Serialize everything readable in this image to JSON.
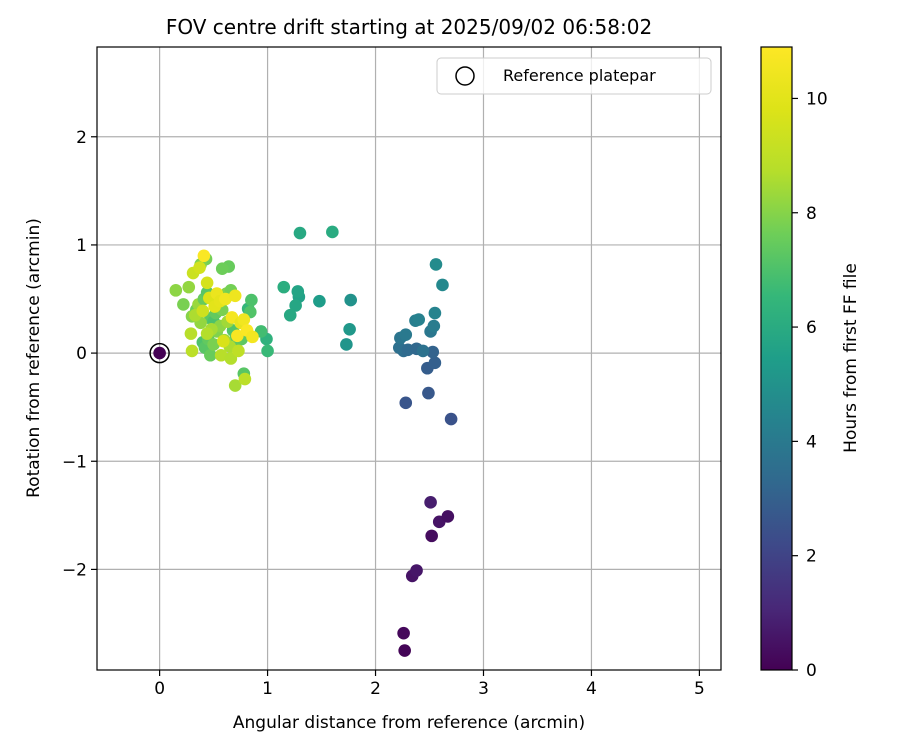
{
  "chart_data": {
    "type": "scatter",
    "title": "FOV centre drift starting at 2025/09/02 06:58:02",
    "xlabel": "Angular distance from reference (arcmin)",
    "ylabel": "Rotation from reference (arcmin)",
    "xlim": [
      -0.58,
      5.2
    ],
    "ylim": [
      -2.93,
      2.83
    ],
    "xticks": [
      0,
      1,
      2,
      3,
      4,
      5
    ],
    "yticks": [
      -2,
      -1,
      0,
      1,
      2
    ],
    "xtick_labels": [
      "0",
      "1",
      "2",
      "3",
      "4",
      "5"
    ],
    "ytick_labels": [
      "−2",
      "−1",
      "0",
      "1",
      "2"
    ],
    "grid": true,
    "legend": {
      "position": "top-right",
      "entries": [
        "Reference platepar"
      ]
    },
    "colorbar": {
      "label": "Hours from first FF file",
      "colormap": "viridis",
      "range": [
        0,
        10.9
      ],
      "ticks": [
        0,
        2,
        4,
        6,
        8,
        10
      ],
      "tick_labels": [
        "0",
        "2",
        "4",
        "6",
        "8",
        "10"
      ]
    },
    "reference_point": {
      "x": 0,
      "y": 0
    },
    "points": [
      {
        "x": 2.27,
        "y": -2.75,
        "h": 0.1
      },
      {
        "x": 2.26,
        "y": -2.59,
        "h": 0.2
      },
      {
        "x": 2.34,
        "y": -2.06,
        "h": 0.5
      },
      {
        "x": 2.38,
        "y": -2.01,
        "h": 0.6
      },
      {
        "x": 2.52,
        "y": -1.69,
        "h": 0.3
      },
      {
        "x": 2.59,
        "y": -1.56,
        "h": 0.5
      },
      {
        "x": 2.67,
        "y": -1.51,
        "h": 0.4
      },
      {
        "x": 2.51,
        "y": -1.38,
        "h": 0.8
      },
      {
        "x": 2.7,
        "y": -0.61,
        "h": 2.5
      },
      {
        "x": 2.28,
        "y": -0.46,
        "h": 2.6
      },
      {
        "x": 2.49,
        "y": -0.37,
        "h": 2.7
      },
      {
        "x": 2.48,
        "y": -0.14,
        "h": 2.9
      },
      {
        "x": 2.55,
        "y": -0.09,
        "h": 3.0
      },
      {
        "x": 2.53,
        "y": 0.01,
        "h": 3.1
      },
      {
        "x": 2.26,
        "y": 0.02,
        "h": 3.5
      },
      {
        "x": 2.22,
        "y": 0.05,
        "h": 3.6
      },
      {
        "x": 2.3,
        "y": 0.03,
        "h": 3.4
      },
      {
        "x": 2.38,
        "y": 0.04,
        "h": 3.3
      },
      {
        "x": 2.44,
        "y": 0.02,
        "h": 3.7
      },
      {
        "x": 2.23,
        "y": 0.14,
        "h": 3.8
      },
      {
        "x": 2.28,
        "y": 0.17,
        "h": 4.0
      },
      {
        "x": 2.51,
        "y": 0.2,
        "h": 3.9
      },
      {
        "x": 2.54,
        "y": 0.25,
        "h": 4.1
      },
      {
        "x": 2.37,
        "y": 0.3,
        "h": 4.2
      },
      {
        "x": 2.4,
        "y": 0.31,
        "h": 4.3
      },
      {
        "x": 2.55,
        "y": 0.37,
        "h": 4.4
      },
      {
        "x": 2.62,
        "y": 0.63,
        "h": 4.6
      },
      {
        "x": 2.56,
        "y": 0.82,
        "h": 4.7
      },
      {
        "x": 1.73,
        "y": 0.08,
        "h": 5.1
      },
      {
        "x": 1.76,
        "y": 0.22,
        "h": 5.2
      },
      {
        "x": 1.77,
        "y": 0.49,
        "h": 5.0
      },
      {
        "x": 1.48,
        "y": 0.48,
        "h": 5.4
      },
      {
        "x": 1.29,
        "y": 0.52,
        "h": 5.6
      },
      {
        "x": 1.28,
        "y": 0.57,
        "h": 5.7
      },
      {
        "x": 1.26,
        "y": 0.44,
        "h": 5.8
      },
      {
        "x": 1.21,
        "y": 0.35,
        "h": 5.9
      },
      {
        "x": 1.15,
        "y": 0.61,
        "h": 6.1
      },
      {
        "x": 1.3,
        "y": 1.11,
        "h": 5.9
      },
      {
        "x": 1.6,
        "y": 1.12,
        "h": 6.0
      },
      {
        "x": 0.99,
        "y": 0.13,
        "h": 6.3
      },
      {
        "x": 1.0,
        "y": 0.02,
        "h": 6.6
      },
      {
        "x": 0.94,
        "y": 0.2,
        "h": 6.8
      },
      {
        "x": 0.82,
        "y": 0.41,
        "h": 6.5
      },
      {
        "x": 0.85,
        "y": 0.49,
        "h": 7.0
      },
      {
        "x": 0.84,
        "y": 0.38,
        "h": 7.1
      },
      {
        "x": 0.78,
        "y": -0.19,
        "h": 7.2
      },
      {
        "x": 0.76,
        "y": 0.13,
        "h": 7.3
      },
      {
        "x": 0.7,
        "y": 0.08,
        "h": 7.4
      },
      {
        "x": 0.64,
        "y": 0.8,
        "h": 7.5
      },
      {
        "x": 0.58,
        "y": 0.78,
        "h": 7.6
      },
      {
        "x": 0.43,
        "y": 0.87,
        "h": 7.7
      },
      {
        "x": 0.38,
        "y": 0.82,
        "h": 7.9
      },
      {
        "x": 0.15,
        "y": 0.58,
        "h": 8.1
      },
      {
        "x": 0.22,
        "y": 0.45,
        "h": 7.8
      },
      {
        "x": 0.27,
        "y": 0.61,
        "h": 8.2
      },
      {
        "x": 0.3,
        "y": 0.34,
        "h": 8.0
      },
      {
        "x": 0.34,
        "y": 0.4,
        "h": 7.6
      },
      {
        "x": 0.36,
        "y": 0.45,
        "h": 8.3
      },
      {
        "x": 0.41,
        "y": 0.5,
        "h": 7.5
      },
      {
        "x": 0.44,
        "y": 0.56,
        "h": 7.2
      },
      {
        "x": 0.47,
        "y": 0.32,
        "h": 7.3
      },
      {
        "x": 0.5,
        "y": 0.29,
        "h": 7.0
      },
      {
        "x": 0.52,
        "y": 0.37,
        "h": 7.4
      },
      {
        "x": 0.55,
        "y": 0.45,
        "h": 7.6
      },
      {
        "x": 0.58,
        "y": 0.4,
        "h": 7.8
      },
      {
        "x": 0.62,
        "y": 0.55,
        "h": 8.0
      },
      {
        "x": 0.66,
        "y": 0.58,
        "h": 7.7
      },
      {
        "x": 0.68,
        "y": 0.21,
        "h": 7.1
      },
      {
        "x": 0.71,
        "y": 0.15,
        "h": 7.3
      },
      {
        "x": 0.4,
        "y": 0.1,
        "h": 7.0
      },
      {
        "x": 0.42,
        "y": 0.05,
        "h": 7.2
      },
      {
        "x": 0.45,
        "y": 0.13,
        "h": 7.4
      },
      {
        "x": 0.47,
        "y": -0.02,
        "h": 7.5
      },
      {
        "x": 0.5,
        "y": 0.08,
        "h": 7.8
      },
      {
        "x": 0.53,
        "y": 0.2,
        "h": 7.9
      },
      {
        "x": 0.56,
        "y": 0.25,
        "h": 8.1
      },
      {
        "x": 0.6,
        "y": 0.12,
        "h": 8.3
      },
      {
        "x": 0.63,
        "y": 0.29,
        "h": 8.4
      },
      {
        "x": 0.65,
        "y": 0.06,
        "h": 8.6
      },
      {
        "x": 0.48,
        "y": 0.22,
        "h": 8.5
      },
      {
        "x": 0.44,
        "y": 0.18,
        "h": 8.7
      },
      {
        "x": 0.38,
        "y": 0.28,
        "h": 8.2
      },
      {
        "x": 0.33,
        "y": 0.35,
        "h": 8.6
      },
      {
        "x": 0.29,
        "y": 0.18,
        "h": 8.8
      },
      {
        "x": 0.3,
        "y": 0.02,
        "h": 8.9
      },
      {
        "x": 0.57,
        "y": -0.02,
        "h": 8.8
      },
      {
        "x": 0.66,
        "y": -0.05,
        "h": 8.7
      },
      {
        "x": 0.7,
        "y": -0.3,
        "h": 8.5
      },
      {
        "x": 0.79,
        "y": -0.24,
        "h": 8.9
      },
      {
        "x": 0.73,
        "y": 0.02,
        "h": 9.0
      },
      {
        "x": 0.31,
        "y": 0.74,
        "h": 9.3
      },
      {
        "x": 0.37,
        "y": 0.79,
        "h": 9.5
      },
      {
        "x": 0.44,
        "y": 0.65,
        "h": 9.6
      },
      {
        "x": 0.4,
        "y": 0.39,
        "h": 9.4
      },
      {
        "x": 0.46,
        "y": 0.51,
        "h": 9.8
      },
      {
        "x": 0.51,
        "y": 0.43,
        "h": 10.0
      },
      {
        "x": 0.53,
        "y": 0.55,
        "h": 10.3
      },
      {
        "x": 0.56,
        "y": 0.48,
        "h": 10.1
      },
      {
        "x": 0.59,
        "y": 0.11,
        "h": 9.7
      },
      {
        "x": 0.61,
        "y": 0.5,
        "h": 10.5
      },
      {
        "x": 0.67,
        "y": 0.33,
        "h": 10.6
      },
      {
        "x": 0.7,
        "y": 0.53,
        "h": 10.4
      },
      {
        "x": 0.72,
        "y": 0.16,
        "h": 10.7
      },
      {
        "x": 0.75,
        "y": 0.28,
        "h": 10.2
      },
      {
        "x": 0.78,
        "y": 0.31,
        "h": 10.5
      },
      {
        "x": 0.81,
        "y": 0.21,
        "h": 10.8
      },
      {
        "x": 0.86,
        "y": 0.15,
        "h": 10.6
      },
      {
        "x": 0.41,
        "y": 0.9,
        "h": 10.8
      }
    ]
  }
}
